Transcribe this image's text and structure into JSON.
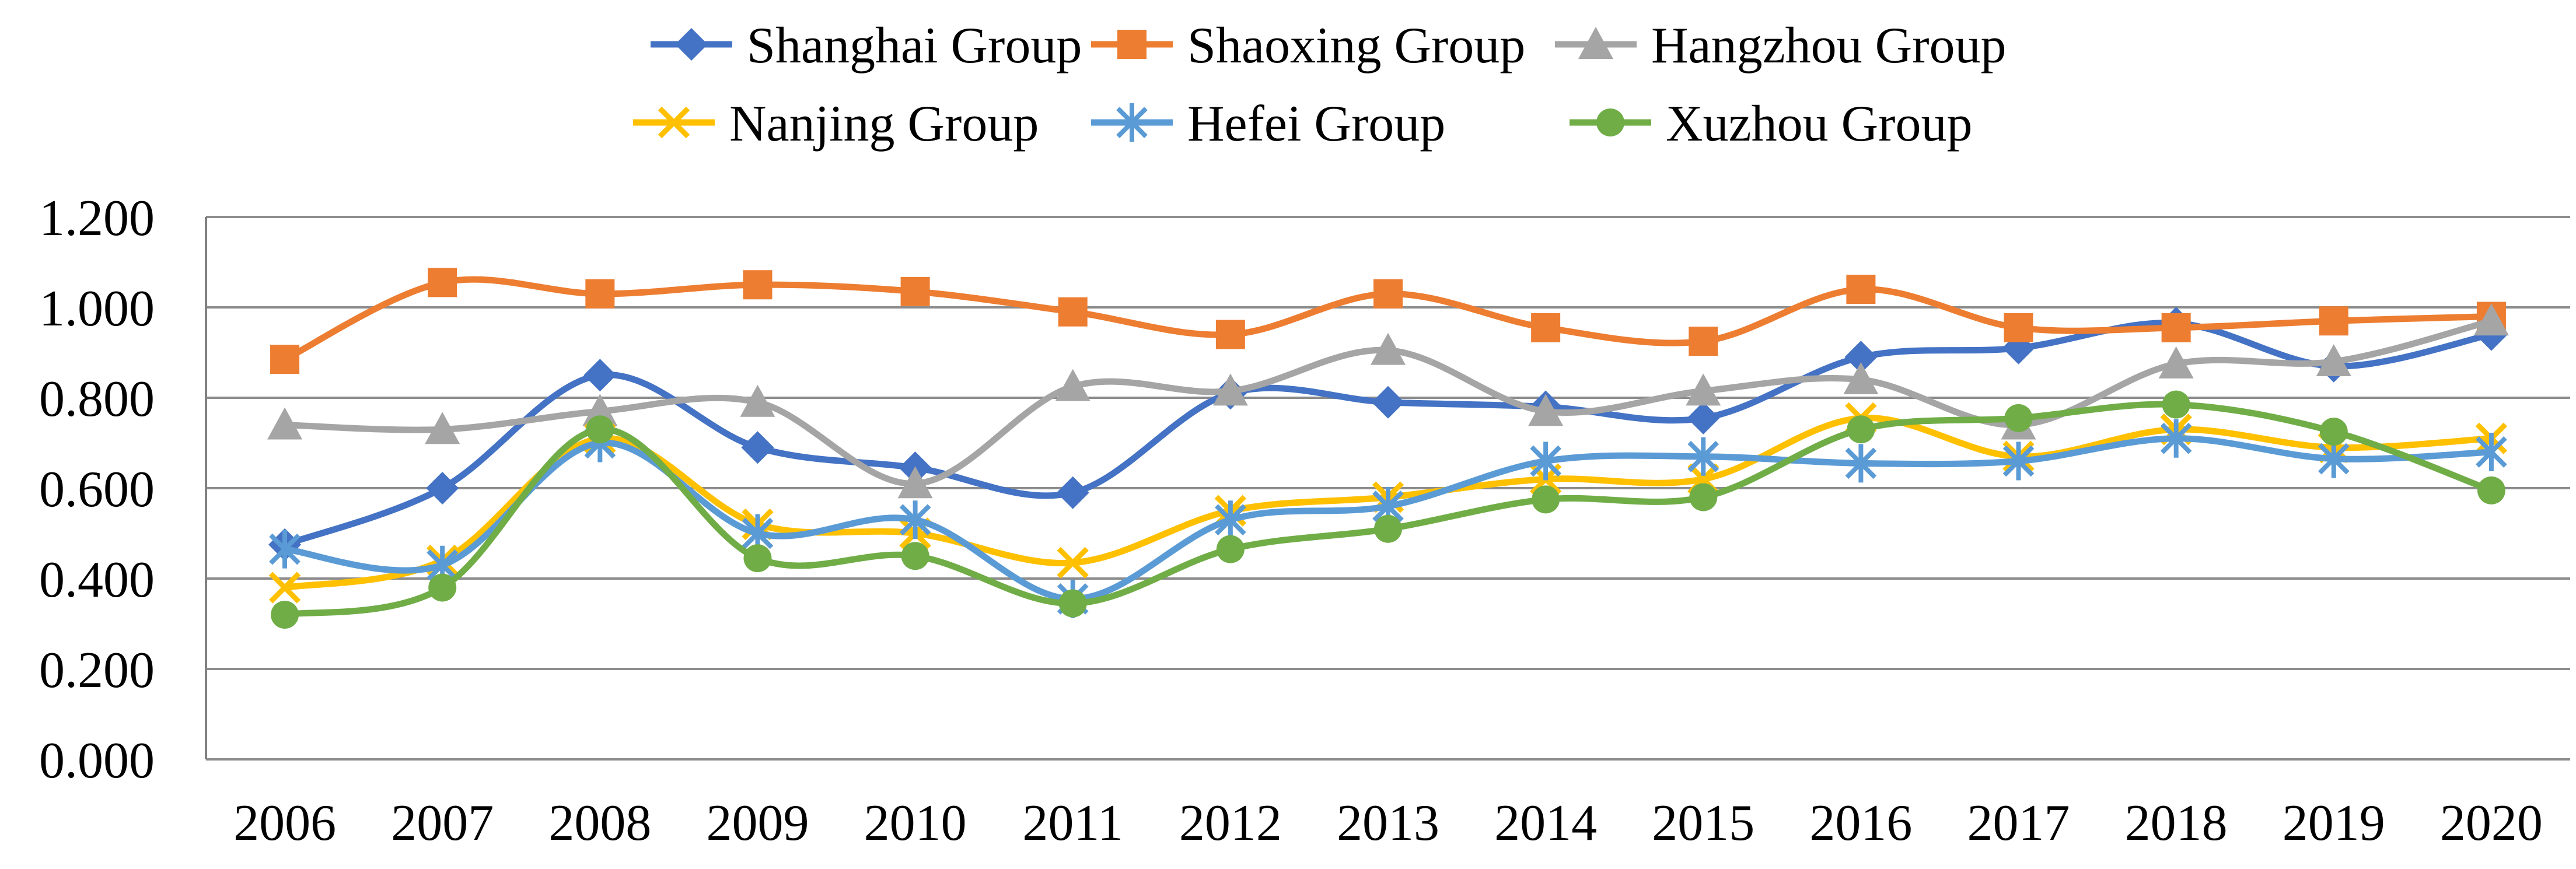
{
  "chart_data": {
    "type": "line",
    "title": "",
    "xlabel": "",
    "ylabel": "",
    "categories": [
      "2006",
      "2007",
      "2008",
      "2009",
      "2010",
      "2011",
      "2012",
      "2013",
      "2014",
      "2015",
      "2016",
      "2017",
      "2018",
      "2019",
      "2020"
    ],
    "y_axis": {
      "min": 0.0,
      "max": 1.2,
      "step": 0.2,
      "tick_labels": [
        "0.000",
        "0.200",
        "0.400",
        "0.600",
        "0.800",
        "1.000",
        "1.200"
      ]
    },
    "grid": true,
    "legend_position": "top",
    "line_style": "smooth",
    "series": [
      {
        "name": "Shanghai Group",
        "color": "#4472C4",
        "marker": "diamond",
        "values": [
          0.475,
          0.6,
          0.85,
          0.69,
          0.645,
          0.59,
          0.81,
          0.79,
          0.78,
          0.755,
          0.89,
          0.91,
          0.965,
          0.87,
          0.94
        ]
      },
      {
        "name": "Shaoxing Group",
        "color": "#ED7D31",
        "marker": "square",
        "values": [
          0.885,
          1.055,
          1.03,
          1.05,
          1.035,
          0.99,
          0.94,
          1.03,
          0.955,
          0.925,
          1.04,
          0.955,
          0.955,
          0.97,
          0.98
        ]
      },
      {
        "name": "Hangzhou Group",
        "color": "#A5A5A5",
        "marker": "triangle",
        "values": [
          0.74,
          0.73,
          0.77,
          0.79,
          0.61,
          0.825,
          0.815,
          0.905,
          0.77,
          0.815,
          0.84,
          0.74,
          0.875,
          0.88,
          0.97
        ]
      },
      {
        "name": "Nanjing Group",
        "color": "#FFC000",
        "marker": "x",
        "values": [
          0.38,
          0.44,
          0.71,
          0.52,
          0.5,
          0.435,
          0.55,
          0.58,
          0.62,
          0.62,
          0.755,
          0.67,
          0.73,
          0.69,
          0.71
        ]
      },
      {
        "name": "Hefei Group",
        "color": "#5B9BD5",
        "marker": "asterisk",
        "values": [
          0.465,
          0.43,
          0.7,
          0.5,
          0.53,
          0.355,
          0.53,
          0.56,
          0.66,
          0.67,
          0.655,
          0.66,
          0.71,
          0.665,
          0.68
        ]
      },
      {
        "name": "Xuzhou Group",
        "color": "#70AD47",
        "marker": "circle",
        "values": [
          0.32,
          0.38,
          0.73,
          0.445,
          0.45,
          0.345,
          0.465,
          0.51,
          0.575,
          0.58,
          0.73,
          0.755,
          0.785,
          0.725,
          0.595
        ]
      }
    ]
  },
  "colors": {
    "background": "#FFFFFF",
    "gridline": "#8C8C8C",
    "axis_line": "#808080",
    "tick_text": "#000000"
  }
}
